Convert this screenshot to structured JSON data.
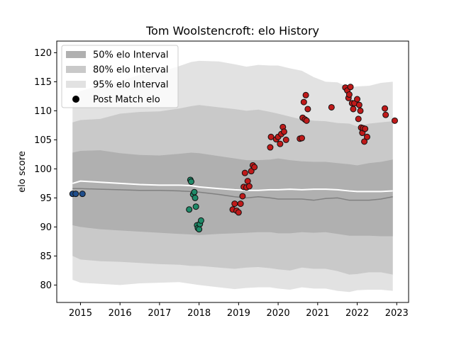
{
  "chart_data": {
    "type": "scatter",
    "title": "Tom Woolstencroft: elo History",
    "xlabel": "",
    "ylabel": "elo score",
    "xlim": [
      2014.4,
      2023.3
    ],
    "ylim": [
      77,
      122
    ],
    "x_ticks": [
      2015,
      2016,
      2017,
      2018,
      2019,
      2020,
      2021,
      2022,
      2023
    ],
    "y_ticks": [
      80,
      85,
      90,
      95,
      100,
      105,
      110,
      115,
      120
    ],
    "grid": false,
    "legend_position": "top-left",
    "legend": [
      {
        "label": "50% elo Interval",
        "color": "#b0b0b0",
        "kind": "patch"
      },
      {
        "label": "80% elo Interval",
        "color": "#c9c9c9",
        "kind": "patch"
      },
      {
        "label": "95% elo Interval",
        "color": "#e2e2e2",
        "kind": "patch"
      },
      {
        "label": "Post Match elo",
        "color": "#000000",
        "kind": "marker"
      }
    ],
    "intervals": {
      "x": [
        2014.8,
        2015.0,
        2015.5,
        2016.0,
        2016.5,
        2017.0,
        2017.5,
        2017.8,
        2018.0,
        2018.5,
        2018.9,
        2019.2,
        2019.5,
        2019.8,
        2020.0,
        2020.3,
        2020.6,
        2020.9,
        2021.2,
        2021.5,
        2021.8,
        2022.0,
        2022.3,
        2022.6,
        2022.9
      ],
      "p50_low": [
        90.3,
        90.0,
        89.6,
        89.4,
        89.2,
        89.0,
        88.8,
        88.7,
        88.6,
        88.8,
        88.9,
        89.0,
        89.1,
        89.1,
        88.9,
        88.9,
        89.1,
        89.0,
        89.1,
        88.8,
        88.5,
        88.5,
        88.5,
        88.4,
        88.4
      ],
      "p50_high": [
        102.8,
        103.1,
        103.2,
        102.7,
        102.4,
        102.3,
        102.6,
        102.8,
        102.7,
        102.2,
        101.8,
        101.5,
        101.5,
        101.6,
        101.8,
        101.5,
        101.3,
        101.2,
        101.2,
        101.0,
        100.8,
        100.6,
        101.0,
        101.2,
        101.6
      ],
      "p80_low": [
        85.0,
        84.4,
        84.1,
        84.0,
        83.8,
        83.6,
        83.5,
        83.3,
        83.3,
        83.0,
        82.8,
        83.0,
        83.1,
        82.9,
        82.7,
        82.5,
        83.0,
        82.8,
        82.8,
        82.4,
        81.8,
        81.9,
        82.2,
        82.2,
        81.8
      ],
      "p80_high": [
        108.0,
        108.4,
        108.6,
        109.5,
        109.8,
        109.9,
        110.4,
        110.8,
        111.0,
        110.6,
        110.3,
        110.0,
        110.2,
        109.8,
        109.5,
        109.0,
        108.5,
        108.3,
        108.2,
        107.9,
        107.8,
        107.3,
        107.8,
        108.0,
        108.2
      ],
      "p95_low": [
        80.9,
        80.4,
        80.2,
        80.0,
        80.3,
        80.4,
        80.5,
        80.2,
        80.0,
        79.6,
        79.3,
        79.5,
        79.6,
        79.6,
        79.4,
        79.2,
        79.6,
        79.4,
        79.4,
        79.0,
        78.8,
        79.1,
        79.2,
        79.2,
        79.0
      ],
      "p95_high": [
        112.7,
        113.4,
        114.4,
        115.1,
        116.2,
        116.6,
        117.7,
        118.4,
        118.6,
        118.5,
        118.0,
        117.6,
        117.9,
        117.8,
        117.8,
        117.3,
        116.9,
        115.8,
        115.0,
        114.9,
        114.0,
        114.2,
        114.3,
        114.8,
        115.0
      ],
      "median_grey": [
        96.6,
        96.6,
        96.5,
        96.4,
        96.3,
        96.3,
        96.2,
        96.1,
        96.0,
        95.6,
        95.2,
        95.0,
        95.2,
        95.0,
        94.8,
        94.8,
        94.8,
        94.6,
        94.9,
        95.0,
        94.6,
        94.6,
        94.6,
        94.8,
        95.2
      ],
      "mean_white": [
        97.5,
        97.9,
        97.7,
        97.5,
        97.3,
        97.2,
        97.2,
        97.1,
        96.9,
        96.6,
        96.4,
        96.3,
        96.3,
        96.4,
        96.4,
        96.5,
        96.4,
        96.5,
        96.5,
        96.4,
        96.2,
        96.1,
        96.1,
        96.1,
        96.2
      ]
    },
    "series": [
      {
        "color": "#1f4e8c",
        "x": [
          2014.8,
          2014.88,
          2015.05
        ],
        "y": [
          95.7,
          95.7,
          95.7
        ]
      },
      {
        "color": "#1e8a68",
        "x": [
          2017.78,
          2017.8,
          2017.85,
          2017.88,
          2017.9,
          2017.92,
          2017.95,
          2017.97,
          2018.0,
          2018.02,
          2018.05,
          2017.75
        ],
        "y": [
          98.1,
          97.8,
          95.6,
          96.0,
          95.0,
          93.5,
          90.3,
          89.8,
          89.6,
          90.5,
          91.1,
          93.0
        ]
      },
      {
        "color": "#c01a1a",
        "x": [
          2018.85,
          2018.9,
          2018.95,
          2019.0,
          2019.05,
          2019.1,
          2019.13,
          2019.16,
          2019.2,
          2019.23,
          2019.27,
          2019.32,
          2019.36,
          2019.4,
          2019.8,
          2019.82,
          2019.95,
          2020.0,
          2020.05,
          2020.08,
          2020.12,
          2020.15,
          2020.2,
          2020.55,
          2020.6,
          2020.62,
          2020.65,
          2020.68,
          2020.7,
          2020.72,
          2020.75,
          2021.35,
          2021.7,
          2021.75,
          2021.78,
          2021.8,
          2021.83,
          2021.87,
          2021.9,
          2021.93,
          2022.0,
          2022.03,
          2022.05,
          2022.08,
          2022.1,
          2022.13,
          2022.15,
          2022.18,
          2022.2,
          2022.25,
          2022.7,
          2022.72,
          2022.95
        ],
        "y": [
          93.0,
          94.0,
          92.8,
          92.5,
          94.0,
          95.3,
          96.9,
          99.3,
          96.8,
          97.9,
          97.0,
          99.6,
          100.6,
          100.3,
          103.7,
          105.5,
          105.1,
          105.5,
          104.3,
          106.0,
          107.2,
          106.4,
          105.0,
          105.2,
          105.3,
          108.8,
          111.5,
          108.5,
          112.7,
          108.3,
          110.3,
          110.6,
          114.0,
          113.5,
          112.2,
          112.8,
          114.1,
          111.3,
          110.3,
          111.3,
          112.0,
          108.6,
          111.0,
          110.0,
          107.1,
          106.2,
          107.0,
          104.7,
          106.9,
          105.5,
          110.4,
          109.3,
          108.3
        ]
      }
    ]
  }
}
